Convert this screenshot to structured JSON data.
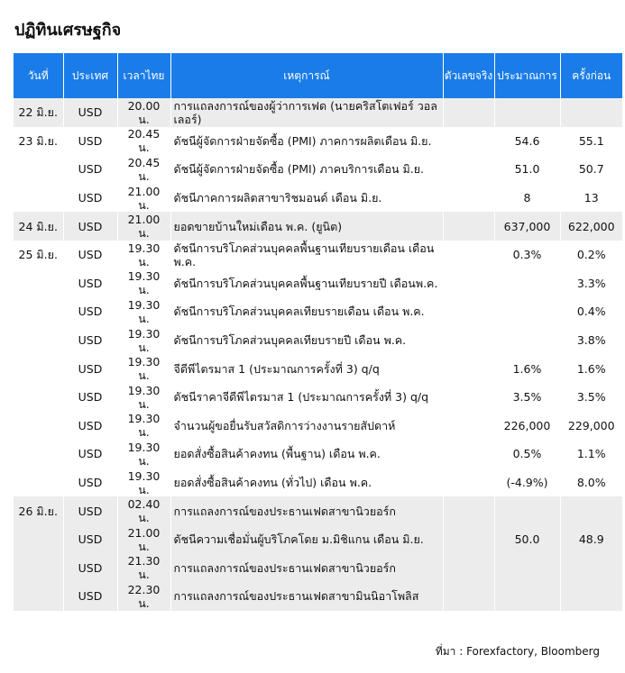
{
  "title": "ปฏิทินเศรษฐกิจ",
  "table": {
    "headers": [
      "วันที่",
      "ประเทศ",
      "เวลาไทย",
      "เหตุการณ์",
      "ตัวเลขจริง",
      "ประมาณการ",
      "ครั้งก่อน"
    ],
    "rows": [
      {
        "date": "22 มิ.ย.",
        "country": "USD",
        "time": "20.00 น.",
        "event": "การแถลงการณ์ของผู้ว่าการเฟด (นายคริสโตเฟอร์ วอลเลอร์)",
        "actual": "",
        "forecast": "",
        "previous": ""
      },
      {
        "date": "23 มิ.ย.",
        "country": "USD",
        "time": "20.45 น.",
        "event": "ดัชนีผู้จัดการฝ่ายจัดซื้อ (PMI) ภาคการผลิตเดือน มิ.ย.",
        "actual": "",
        "forecast": "54.6",
        "previous": "55.1"
      },
      {
        "date": "",
        "country": "USD",
        "time": "20.45 น.",
        "event": "ดัชนีผู้จัดการฝ่ายจัดซื้อ (PMI) ภาคบริการเดือน มิ.ย.",
        "actual": "",
        "forecast": "51.0",
        "previous": "50.7"
      },
      {
        "date": "",
        "country": "USD",
        "time": "21.00 น.",
        "event": "ดัชนีภาคการผลิตสาขาริชมอนด์ เดือน มิ.ย.",
        "actual": "",
        "forecast": "8",
        "previous": "13"
      },
      {
        "date": "24 มิ.ย.",
        "country": "USD",
        "time": "21.00 น.",
        "event": "ยอดขายบ้านใหม่เดือน พ.ค. (ยูนิต)",
        "actual": "",
        "forecast": "637,000",
        "previous": "622,000"
      },
      {
        "date": "25 มิ.ย.",
        "country": "USD",
        "time": "19.30 น.",
        "event": "ดัชนีการบริโภคส่วนบุคคลพื้นฐานเทียบรายเดือน เดือน พ.ค.",
        "actual": "",
        "forecast": "0.3%",
        "previous": "0.2%"
      },
      {
        "date": "",
        "country": "USD",
        "time": "19.30 น.",
        "event": "ดัชนีการบริโภคส่วนบุคคลพื้นฐานเทียบรายปี เดือนพ.ค.",
        "actual": "",
        "forecast": "",
        "previous": "3.3%"
      },
      {
        "date": "",
        "country": "USD",
        "time": "19.30 น.",
        "event": "ดัชนีการบริโภคส่วนบุคคลเทียบรายเดือน เดือน พ.ค.",
        "actual": "",
        "forecast": "",
        "previous": "0.4%"
      },
      {
        "date": "",
        "country": "USD",
        "time": "19.30 น.",
        "event": "ดัชนีการบริโภคส่วนบุคคลเทียบรายปี เดือน พ.ค.",
        "actual": "",
        "forecast": "",
        "previous": "3.8%"
      },
      {
        "date": "",
        "country": "USD",
        "time": "19.30 น.",
        "event": "จีดีพีไตรมาส 1 (ประมาณการครั้งที่ 3) q/q",
        "actual": "",
        "forecast": "1.6%",
        "previous": "1.6%"
      },
      {
        "date": "",
        "country": "USD",
        "time": "19.30 น.",
        "event": "ดัชนีราคาจีดีพีไตรมาส 1 (ประมาณการครั้งที่ 3) q/q",
        "actual": "",
        "forecast": "3.5%",
        "previous": "3.5%"
      },
      {
        "date": "",
        "country": "USD",
        "time": "19.30 น.",
        "event": "จำนวนผู้ขอยื่นรับสวัสดิการว่างงานรายสัปดาห์",
        "actual": "",
        "forecast": "226,000",
        "previous": "229,000"
      },
      {
        "date": "",
        "country": "USD",
        "time": "19.30 น.",
        "event": "ยอดสั่งซื้อสินค้าคงทน (พื้นฐาน) เดือน พ.ค.",
        "actual": "",
        "forecast": "0.5%",
        "previous": "1.1%"
      },
      {
        "date": "",
        "country": "USD",
        "time": "19.30 น.",
        "event": "ยอดสั่งซื้อสินค้าคงทน (ทั่วไป) เดือน พ.ค.",
        "actual": "",
        "forecast": "(-4.9%)",
        "previous": "8.0%"
      },
      {
        "date": "26 มิ.ย.",
        "country": "USD",
        "time": "02.40 น.",
        "event": "การแถลงการณ์ของประธานเฟดสาขานิวยอร์ก",
        "actual": "",
        "forecast": "",
        "previous": ""
      },
      {
        "date": "",
        "country": "USD",
        "time": "21.00 น.",
        "event": "ดัชนีความเชื่อมั่นผู้บริโภคโดย ม.มิชิแกน เดือน มิ.ย.",
        "actual": "",
        "forecast": "50.0",
        "previous": "48.9"
      },
      {
        "date": "",
        "country": "USD",
        "time": "21.30 น.",
        "event": "การแถลงการณ์ของประธานเฟดสาขานิวยอร์ก",
        "actual": "",
        "forecast": "",
        "previous": ""
      },
      {
        "date": "",
        "country": "USD",
        "time": "22.30 น.",
        "event": "การแถลงการณ์ของประธานเฟดสาขามินนิอาโพลิส",
        "actual": "",
        "forecast": "",
        "previous": ""
      }
    ]
  },
  "source": "ที่มา : Forexfactory, Bloomberg",
  "colors": {
    "header_bg": "#1a7ce8",
    "row_shade": "#ececec"
  }
}
